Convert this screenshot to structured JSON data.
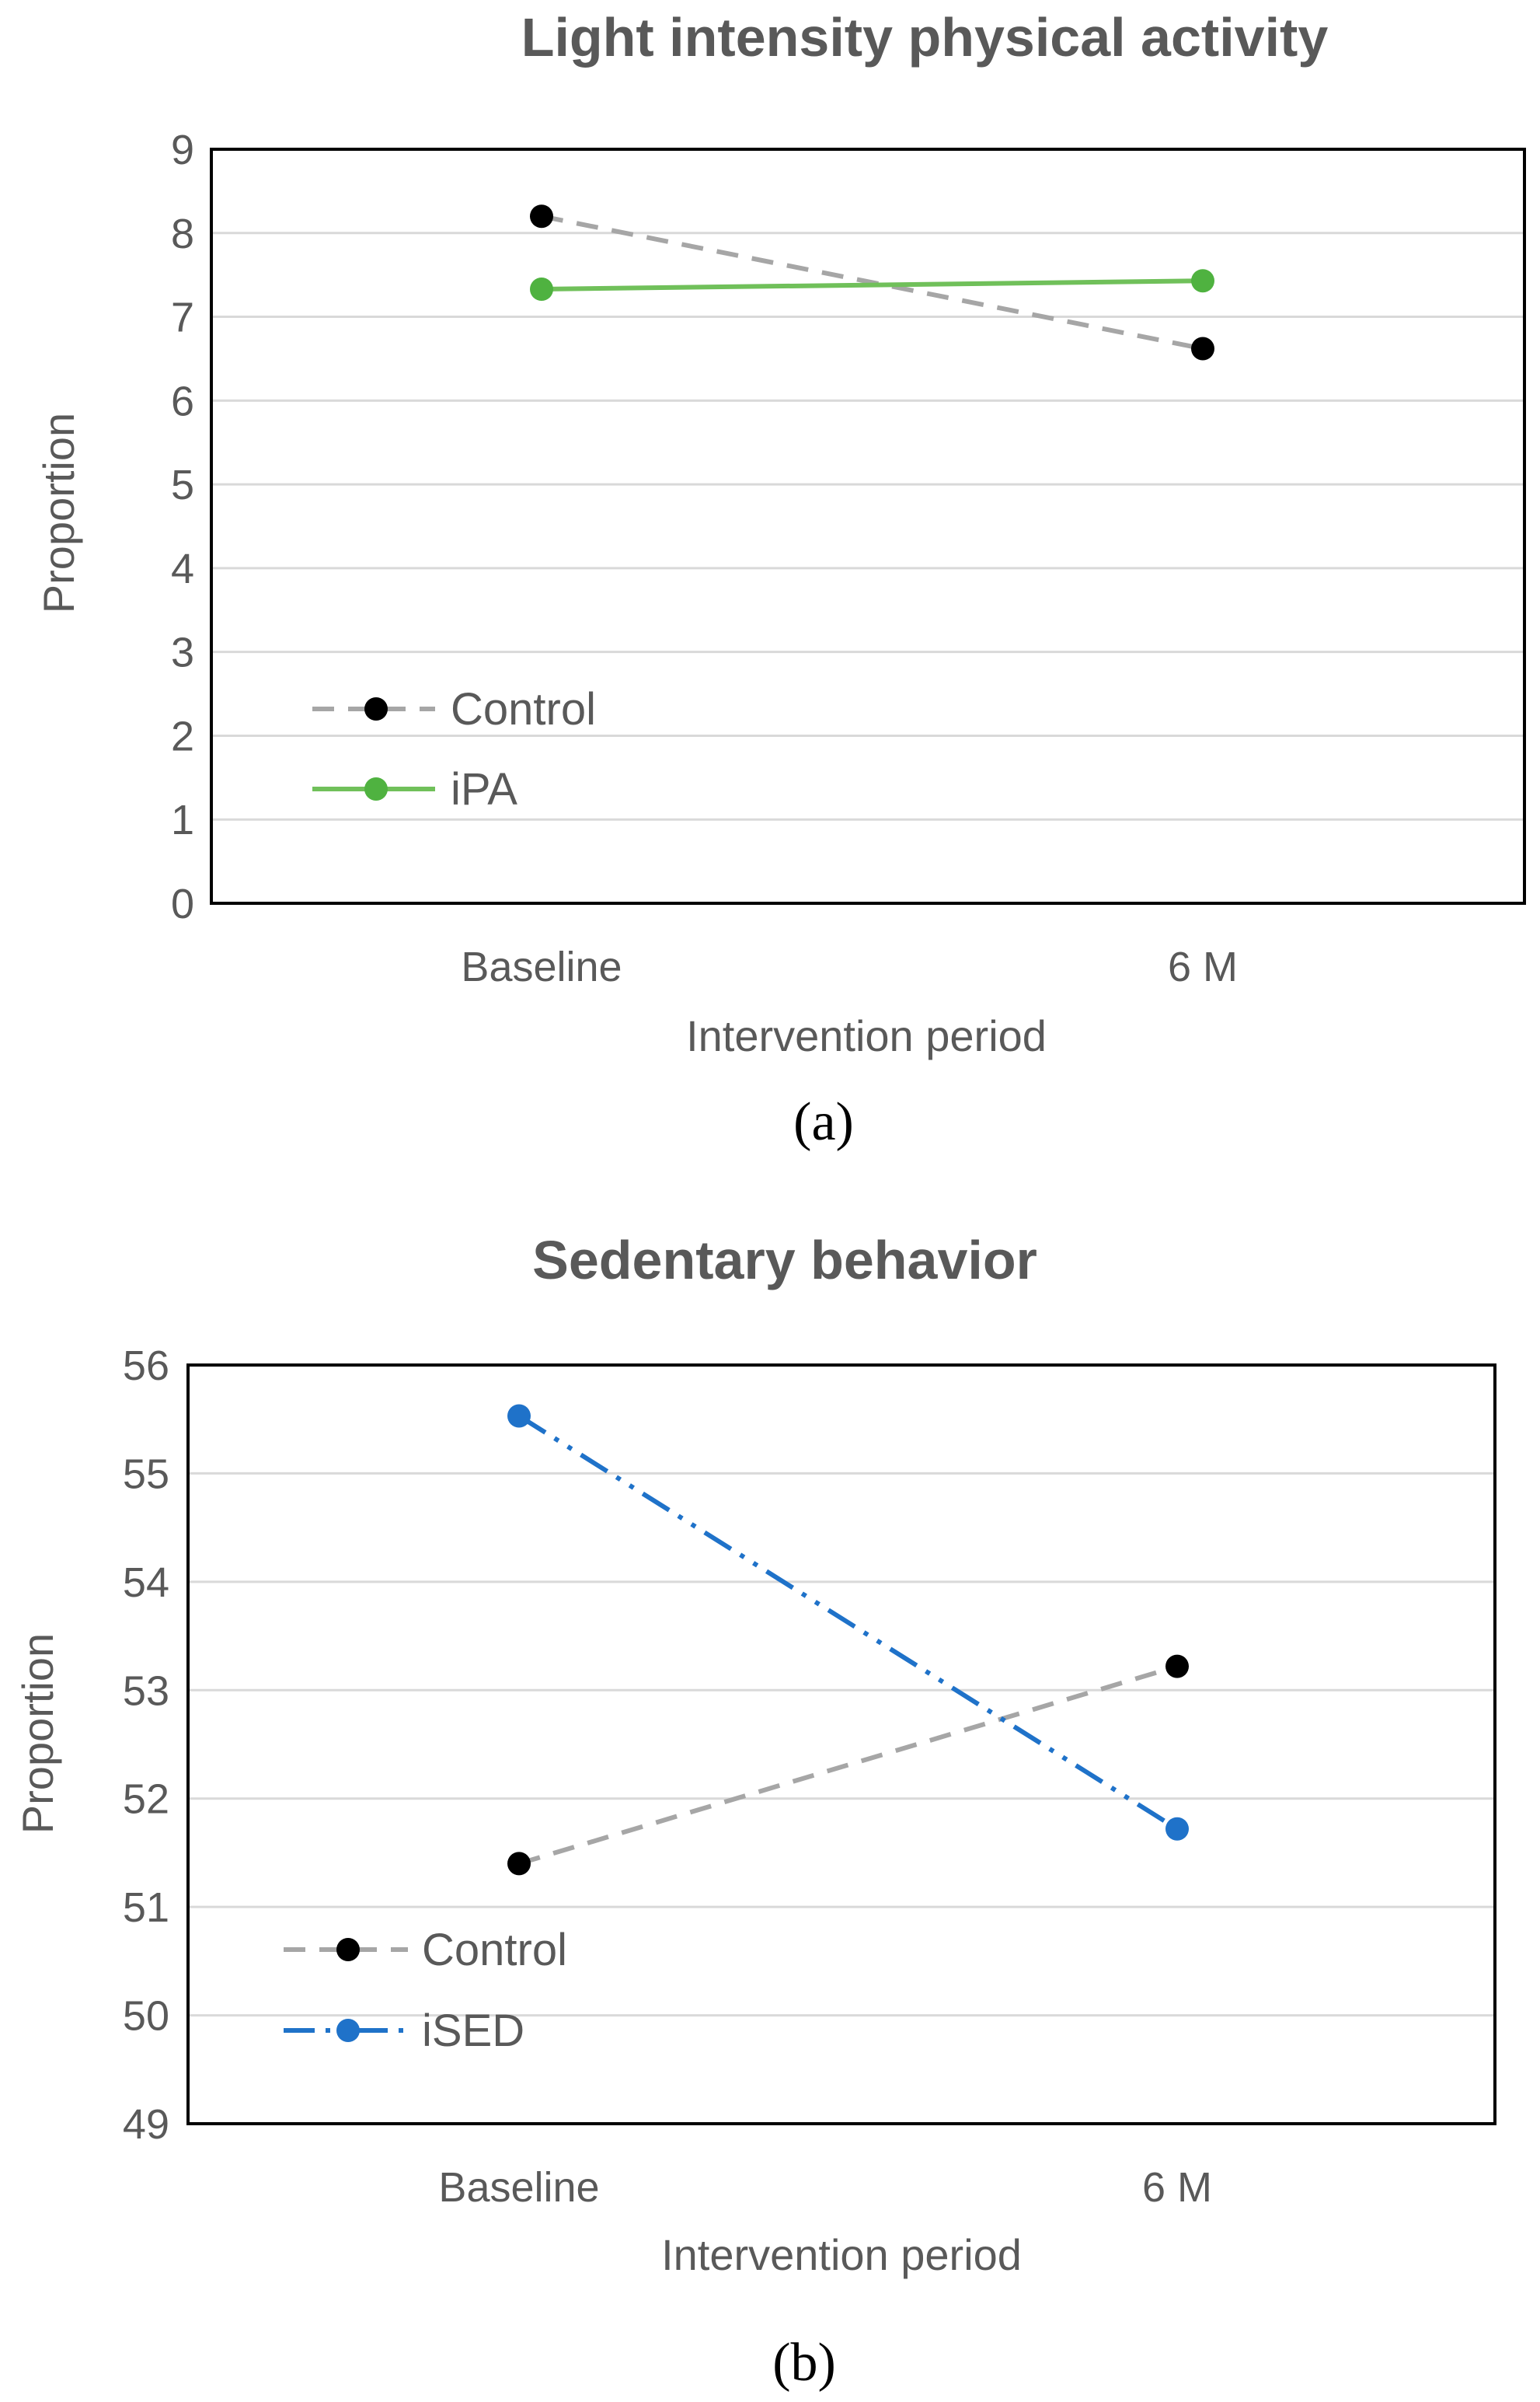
{
  "chart_data": [
    {
      "type": "line",
      "title": "Light intensity physical activity",
      "xlabel": "Intervention period",
      "ylabel": "Proportion",
      "categories": [
        "Baseline",
        "6 M"
      ],
      "ylim": [
        0,
        9
      ],
      "yticks": [
        "0",
        "1",
        "2",
        "3",
        "4",
        "5",
        "6",
        "7",
        "8",
        "9"
      ],
      "grid": true,
      "legend_position": "bottom-left",
      "panel_label": "(a)",
      "series": [
        {
          "name": "Control",
          "values": [
            8.2,
            6.62
          ],
          "color": "#a6a6a6",
          "marker_color": "#000000",
          "style": "dashed"
        },
        {
          "name": "iPA",
          "values": [
            7.33,
            7.43
          ],
          "color": "#70c05a",
          "marker_color": "#4fb240",
          "style": "solid"
        }
      ]
    },
    {
      "type": "line",
      "title": "Sedentary behavior",
      "xlabel": "Intervention period",
      "ylabel": "Proportion",
      "categories": [
        "Baseline",
        "6 M"
      ],
      "ylim": [
        49,
        56
      ],
      "yticks": [
        "49",
        "50",
        "51",
        "52",
        "53",
        "54",
        "55",
        "56"
      ],
      "grid": true,
      "legend_position": "bottom-left",
      "panel_label": "(b)",
      "series": [
        {
          "name": "Control",
          "values": [
            51.4,
            53.22
          ],
          "color": "#a6a6a6",
          "marker_color": "#000000",
          "style": "dashed"
        },
        {
          "name": "iSED",
          "values": [
            55.53,
            51.72
          ],
          "color": "#1f72c9",
          "marker_color": "#1f72c9",
          "style": "dashdotdot"
        }
      ]
    }
  ]
}
